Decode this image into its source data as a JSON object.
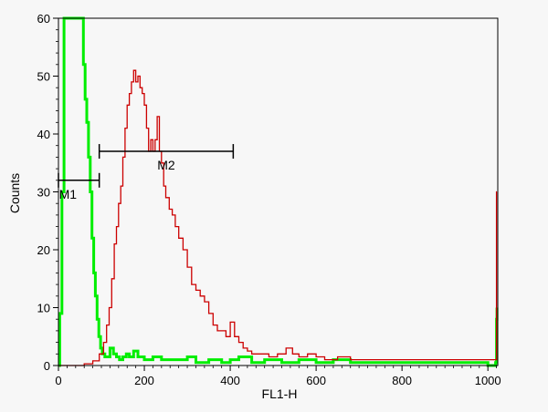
{
  "chart_data": {
    "type": "line",
    "title": "",
    "xlabel": "FL1-H",
    "ylabel": "Counts",
    "xlim": [
      0,
      1023
    ],
    "ylim": [
      0,
      60
    ],
    "x_ticks": [
      "0",
      "200",
      "400",
      "600",
      "800",
      "1000"
    ],
    "y_ticks": [
      "0",
      "10",
      "20",
      "30",
      "40",
      "50",
      "60"
    ],
    "grid": false,
    "legend": "none",
    "series": [
      {
        "color": "#00ee00",
        "points": [
          [
            0,
            0
          ],
          [
            3,
            9
          ],
          [
            8,
            30
          ],
          [
            13,
            60
          ],
          [
            20,
            60
          ],
          [
            30,
            60
          ],
          [
            45,
            60
          ],
          [
            55,
            60
          ],
          [
            58,
            52
          ],
          [
            62,
            46
          ],
          [
            66,
            42
          ],
          [
            70,
            36
          ],
          [
            74,
            30
          ],
          [
            78,
            22
          ],
          [
            82,
            16
          ],
          [
            86,
            12
          ],
          [
            90,
            8
          ],
          [
            94,
            5
          ],
          [
            98,
            3
          ],
          [
            102,
            2
          ],
          [
            108,
            1.5
          ],
          [
            115,
            1.5
          ],
          [
            120,
            3
          ],
          [
            128,
            2
          ],
          [
            135,
            1.5
          ],
          [
            142,
            1
          ],
          [
            150,
            1.5
          ],
          [
            158,
            2
          ],
          [
            165,
            1.5
          ],
          [
            175,
            2.5
          ],
          [
            185,
            1.5
          ],
          [
            200,
            1
          ],
          [
            220,
            1.5
          ],
          [
            240,
            1
          ],
          [
            260,
            1
          ],
          [
            280,
            1
          ],
          [
            300,
            1.5
          ],
          [
            320,
            0.5
          ],
          [
            350,
            1
          ],
          [
            380,
            0.5
          ],
          [
            400,
            1
          ],
          [
            420,
            1.5
          ],
          [
            450,
            0.5
          ],
          [
            480,
            1
          ],
          [
            520,
            0.5
          ],
          [
            560,
            1
          ],
          [
            600,
            0.5
          ],
          [
            640,
            1
          ],
          [
            680,
            0.5
          ],
          [
            720,
            0.5
          ],
          [
            760,
            0.5
          ],
          [
            800,
            0.5
          ],
          [
            840,
            0.5
          ],
          [
            880,
            0.5
          ],
          [
            920,
            0.5
          ],
          [
            960,
            0.5
          ],
          [
            1000,
            0
          ],
          [
            1018,
            0.5
          ],
          [
            1020,
            8
          ],
          [
            1021,
            10
          ]
        ]
      },
      {
        "color": "#cc0000",
        "points": [
          [
            0,
            0
          ],
          [
            40,
            0
          ],
          [
            60,
            0.3
          ],
          [
            80,
            0.8
          ],
          [
            95,
            2
          ],
          [
            105,
            4
          ],
          [
            112,
            7
          ],
          [
            118,
            10
          ],
          [
            124,
            15
          ],
          [
            130,
            21
          ],
          [
            135,
            24
          ],
          [
            140,
            28
          ],
          [
            145,
            31
          ],
          [
            150,
            36
          ],
          [
            155,
            41
          ],
          [
            160,
            45
          ],
          [
            165,
            47
          ],
          [
            170,
            49
          ],
          [
            175,
            51
          ],
          [
            180,
            49
          ],
          [
            185,
            50
          ],
          [
            190,
            48
          ],
          [
            195,
            47
          ],
          [
            200,
            45
          ],
          [
            205,
            41
          ],
          [
            210,
            37
          ],
          [
            215,
            39
          ],
          [
            220,
            37
          ],
          [
            225,
            39
          ],
          [
            230,
            43
          ],
          [
            235,
            37
          ],
          [
            240,
            35
          ],
          [
            245,
            31
          ],
          [
            250,
            29
          ],
          [
            258,
            27
          ],
          [
            265,
            26
          ],
          [
            272,
            24
          ],
          [
            280,
            22
          ],
          [
            290,
            20
          ],
          [
            300,
            17
          ],
          [
            310,
            14
          ],
          [
            320,
            13
          ],
          [
            330,
            12
          ],
          [
            340,
            11
          ],
          [
            350,
            9
          ],
          [
            360,
            7
          ],
          [
            370,
            6
          ],
          [
            380,
            6
          ],
          [
            390,
            5
          ],
          [
            400,
            7.5
          ],
          [
            410,
            5
          ],
          [
            420,
            4
          ],
          [
            430,
            3
          ],
          [
            440,
            2.5
          ],
          [
            450,
            2
          ],
          [
            470,
            2
          ],
          [
            490,
            1.5
          ],
          [
            510,
            2
          ],
          [
            530,
            3
          ],
          [
            545,
            2
          ],
          [
            560,
            1.5
          ],
          [
            580,
            2
          ],
          [
            600,
            1.5
          ],
          [
            620,
            1
          ],
          [
            650,
            1.5
          ],
          [
            680,
            1
          ],
          [
            710,
            1
          ],
          [
            740,
            1
          ],
          [
            770,
            1
          ],
          [
            800,
            1
          ],
          [
            830,
            1
          ],
          [
            860,
            1
          ],
          [
            890,
            1
          ],
          [
            920,
            1
          ],
          [
            950,
            1
          ],
          [
            980,
            1
          ],
          [
            1010,
            1
          ],
          [
            1019,
            1
          ],
          [
            1020,
            30
          ],
          [
            1021,
            30
          ]
        ]
      }
    ],
    "markers": [
      {
        "label": "M1",
        "x_start": 0,
        "x_end": 95,
        "y": 32
      },
      {
        "label": "M2",
        "x_start": 95,
        "x_end": 407,
        "y": 37
      }
    ]
  }
}
